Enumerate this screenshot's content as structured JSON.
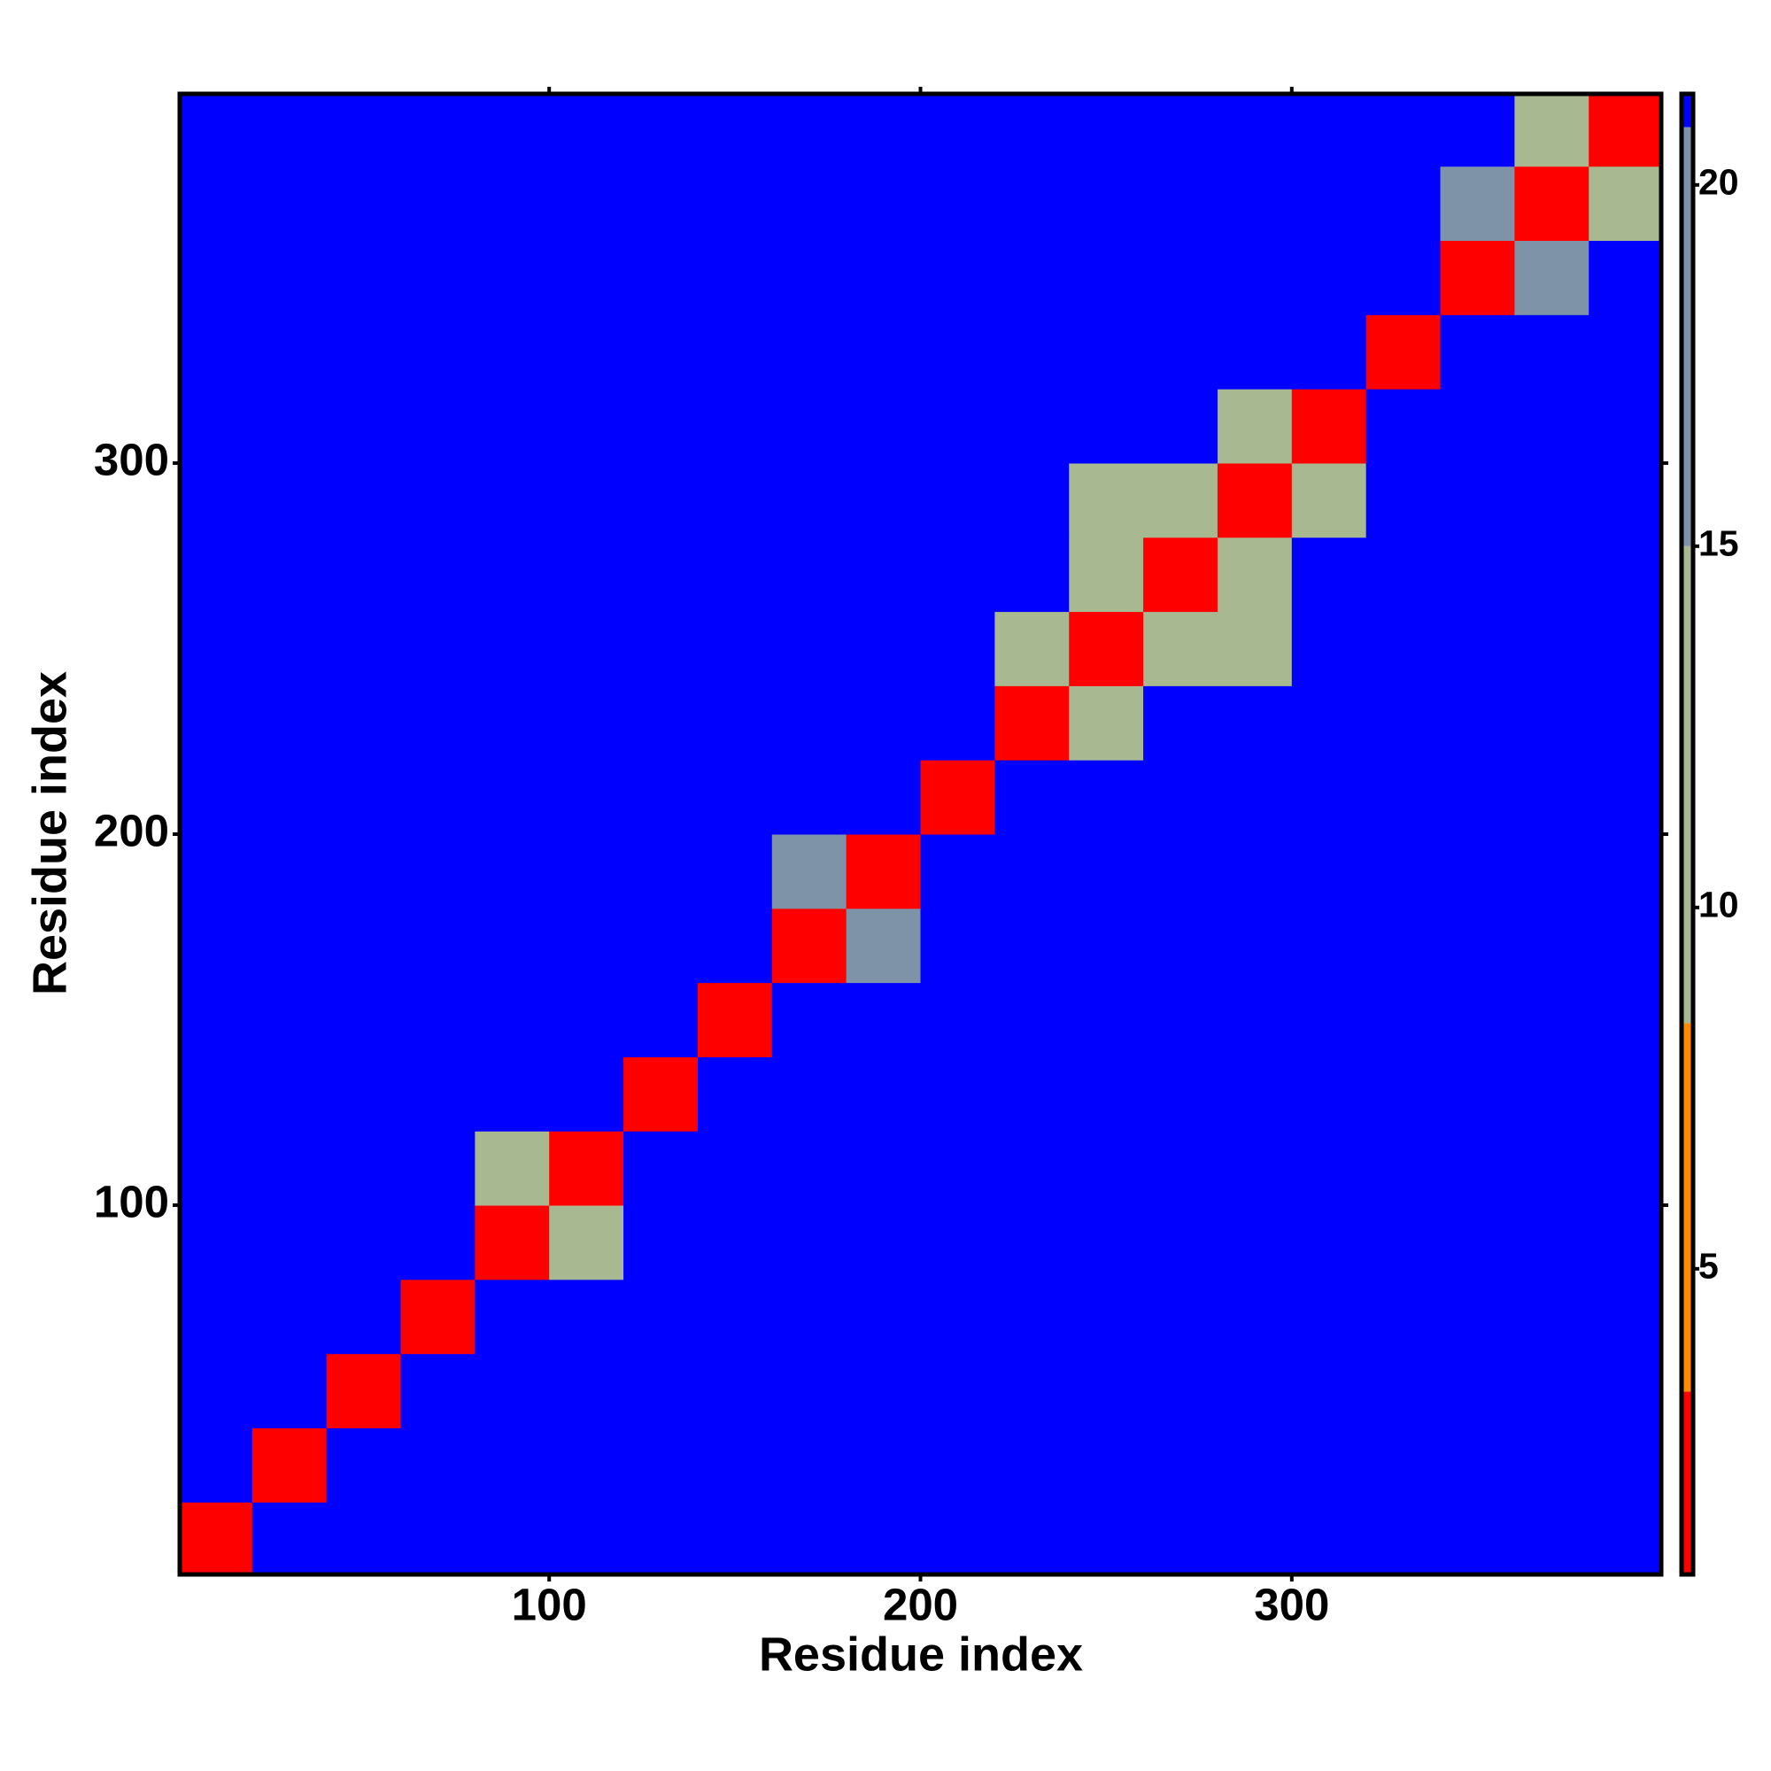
{
  "chart_data": {
    "type": "heatmap",
    "xlabel": "Residue index",
    "ylabel": "Residue index",
    "bin_edges": [
      0,
      20,
      40,
      60,
      80,
      100,
      120,
      140,
      160,
      180,
      200,
      220,
      240,
      260,
      280,
      300,
      320,
      340,
      360,
      380,
      400
    ],
    "matrix": [
      [
        3,
        21,
        21,
        21,
        21,
        21,
        21,
        21,
        21,
        21,
        21,
        21,
        21,
        21,
        21,
        21,
        21,
        21,
        21,
        21
      ],
      [
        21,
        3,
        21,
        21,
        21,
        21,
        21,
        21,
        21,
        21,
        21,
        21,
        21,
        21,
        21,
        21,
        21,
        21,
        21,
        21
      ],
      [
        21,
        21,
        3,
        21,
        21,
        21,
        21,
        21,
        21,
        21,
        21,
        21,
        21,
        21,
        21,
        21,
        21,
        21,
        21,
        21
      ],
      [
        21,
        21,
        21,
        3,
        21,
        21,
        21,
        21,
        21,
        21,
        21,
        21,
        21,
        21,
        21,
        21,
        21,
        21,
        21,
        21
      ],
      [
        21,
        21,
        21,
        21,
        3,
        14,
        21,
        21,
        21,
        21,
        21,
        21,
        21,
        21,
        21,
        21,
        21,
        21,
        21,
        21
      ],
      [
        21,
        21,
        21,
        21,
        14,
        3,
        21,
        21,
        21,
        21,
        21,
        21,
        21,
        21,
        21,
        21,
        21,
        21,
        21,
        21
      ],
      [
        21,
        21,
        21,
        21,
        21,
        21,
        3,
        21,
        21,
        21,
        21,
        21,
        21,
        21,
        21,
        21,
        21,
        21,
        21,
        21
      ],
      [
        21,
        21,
        21,
        21,
        21,
        21,
        21,
        3,
        21,
        21,
        21,
        21,
        21,
        21,
        21,
        21,
        21,
        21,
        21,
        21
      ],
      [
        21,
        21,
        21,
        21,
        21,
        21,
        21,
        21,
        3,
        17,
        21,
        21,
        21,
        21,
        21,
        21,
        21,
        21,
        21,
        21
      ],
      [
        21,
        21,
        21,
        21,
        21,
        21,
        21,
        21,
        17,
        3,
        21,
        21,
        21,
        21,
        21,
        21,
        21,
        21,
        21,
        21
      ],
      [
        21,
        21,
        21,
        21,
        21,
        21,
        21,
        21,
        21,
        21,
        3,
        21,
        21,
        21,
        21,
        21,
        21,
        21,
        21,
        21
      ],
      [
        21,
        21,
        21,
        21,
        21,
        21,
        21,
        21,
        21,
        21,
        21,
        3,
        13,
        21,
        21,
        21,
        21,
        21,
        21,
        21
      ],
      [
        21,
        21,
        21,
        21,
        21,
        21,
        21,
        21,
        21,
        21,
        21,
        13,
        3,
        13,
        15,
        21,
        21,
        21,
        21,
        21
      ],
      [
        21,
        21,
        21,
        21,
        21,
        21,
        21,
        21,
        21,
        21,
        21,
        21,
        13,
        3,
        13,
        21,
        21,
        21,
        21,
        21
      ],
      [
        21,
        21,
        21,
        21,
        21,
        21,
        21,
        21,
        21,
        21,
        21,
        21,
        15,
        13,
        3,
        13,
        21,
        21,
        21,
        21
      ],
      [
        21,
        21,
        21,
        21,
        21,
        21,
        21,
        21,
        21,
        21,
        21,
        21,
        21,
        21,
        13,
        3,
        21,
        21,
        21,
        21
      ],
      [
        21,
        21,
        21,
        21,
        21,
        21,
        21,
        21,
        21,
        21,
        21,
        21,
        21,
        21,
        21,
        21,
        3,
        21,
        21,
        21
      ],
      [
        21,
        21,
        21,
        21,
        21,
        21,
        21,
        21,
        21,
        21,
        21,
        21,
        21,
        21,
        21,
        21,
        21,
        3,
        16,
        21
      ],
      [
        21,
        21,
        21,
        21,
        21,
        21,
        21,
        21,
        21,
        21,
        21,
        21,
        21,
        21,
        21,
        21,
        21,
        16,
        3,
        14
      ],
      [
        21,
        21,
        21,
        21,
        21,
        21,
        21,
        21,
        21,
        21,
        21,
        21,
        21,
        21,
        21,
        21,
        21,
        21,
        14,
        3
      ]
    ],
    "xlim": [
      0.5,
      399.5
    ],
    "ylim": [
      0.5,
      399.5
    ],
    "xticks": [
      100,
      200,
      300
    ],
    "yticks": [
      100,
      200,
      300
    ],
    "clim": [
      0.77,
      21.26
    ],
    "cticks": [
      5,
      10,
      15,
      20
    ],
    "color_breaks": [
      0.77,
      3.3,
      8.4,
      15,
      20.8,
      21.26
    ],
    "colors": [
      "#ff0000",
      "#ff8c00",
      "#a8b890",
      "#7f93a8",
      "#0000ff"
    ]
  }
}
